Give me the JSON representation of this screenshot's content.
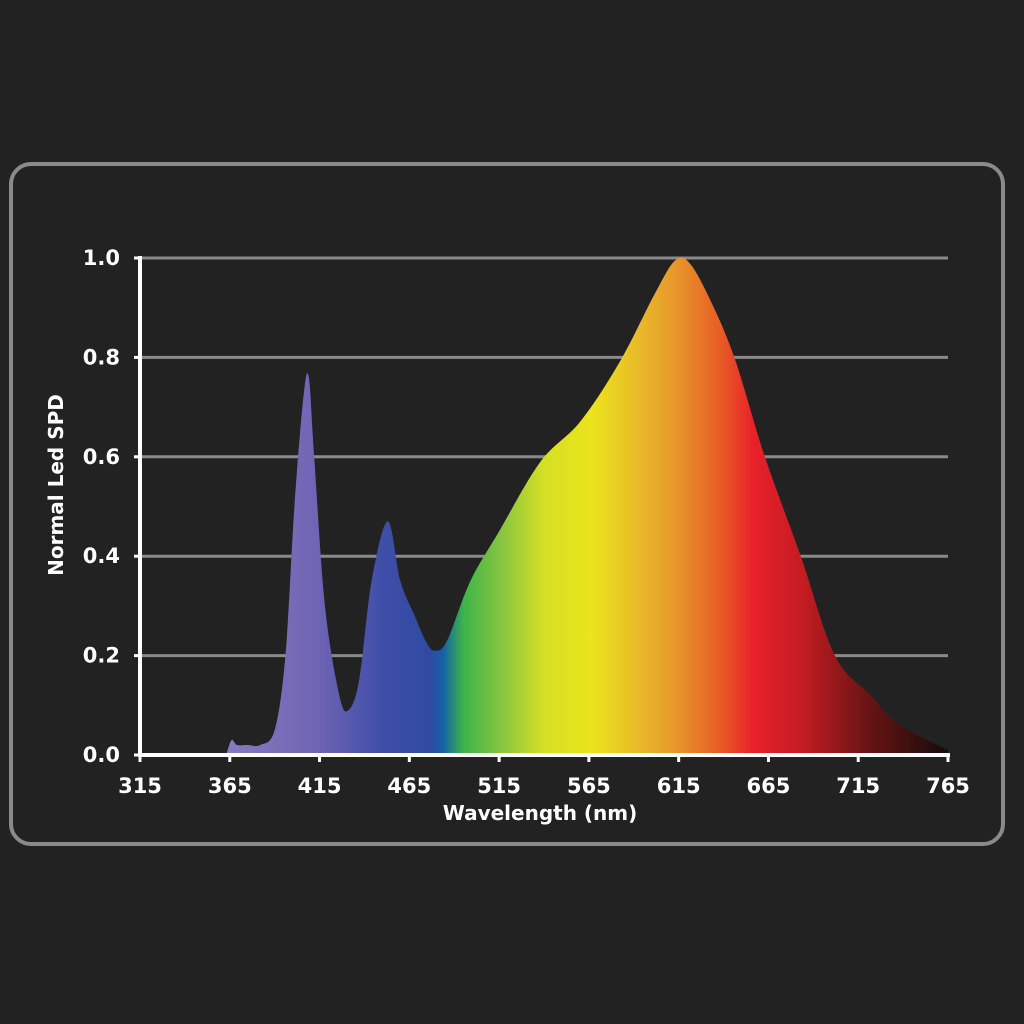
{
  "chart_data": {
    "type": "area",
    "title": "",
    "xlabel": "Wavelength (nm)",
    "ylabel": "Normal Led SPD",
    "xlim": [
      315,
      765
    ],
    "ylim": [
      0,
      1.0
    ],
    "xticks": [
      "315",
      "365",
      "415",
      "465",
      "515",
      "565",
      "615",
      "665",
      "715",
      "765"
    ],
    "yticks": [
      "0.0",
      "0.2",
      "0.4",
      "0.6",
      "0.8",
      "1.0"
    ],
    "grid": "horizontal",
    "fill": "visible-spectrum gradient",
    "x": [
      363,
      366,
      369,
      375,
      382,
      390,
      396,
      401,
      406,
      409,
      412,
      418,
      426,
      431,
      437,
      444,
      453,
      460,
      468,
      474,
      479,
      486,
      499,
      515,
      538,
      560,
      582,
      602,
      613,
      621,
      632,
      646,
      663,
      683,
      702,
      722,
      738,
      765
    ],
    "y": [
      0.0,
      0.03,
      0.02,
      0.02,
      0.02,
      0.05,
      0.2,
      0.5,
      0.72,
      0.76,
      0.6,
      0.3,
      0.12,
      0.09,
      0.15,
      0.35,
      0.47,
      0.35,
      0.28,
      0.23,
      0.21,
      0.23,
      0.35,
      0.45,
      0.59,
      0.67,
      0.79,
      0.93,
      0.995,
      0.99,
      0.92,
      0.8,
      0.6,
      0.4,
      0.2,
      0.12,
      0.06,
      0.01
    ]
  },
  "colors": {
    "background": "#222222",
    "frame": "#8a8a8a",
    "grid": "#8a8a8a",
    "axis": "#ffffff"
  }
}
